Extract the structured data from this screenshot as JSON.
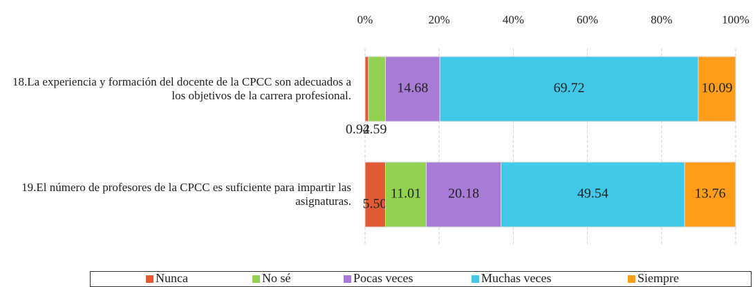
{
  "chart_data": {
    "type": "stacked_barh",
    "categories": [
      "18.La experiencia y formación del docente de la CPCC son adecuados a los objetivos de la carrera profesional.",
      "19.El número de profesores de la CPCC es suficiente para impartir las asignaturas."
    ],
    "series": [
      {
        "name": "Nunca",
        "color": "#e05a33",
        "values": [
          0.92,
          5.5
        ],
        "value_labels": [
          "0.92",
          "5.50"
        ]
      },
      {
        "name": "No sé",
        "color": "#92d050",
        "values": [
          4.59,
          11.01
        ],
        "value_labels": [
          "4.59",
          "11.01"
        ]
      },
      {
        "name": "Pocas veces",
        "color": "#a87bd6",
        "values": [
          14.68,
          20.18
        ],
        "value_labels": [
          "14.68",
          "20.18"
        ]
      },
      {
        "name": "Muchas veces",
        "color": "#41c8e8",
        "values": [
          69.72,
          49.54
        ],
        "value_labels": [
          "69.72",
          "49.54"
        ]
      },
      {
        "name": "Siempre",
        "color": "#ff9c1a",
        "values": [
          10.09,
          13.76
        ],
        "value_labels": [
          "10.09",
          "13.76"
        ]
      }
    ],
    "xlim": [
      0,
      100
    ],
    "xticks": [
      {
        "value": 0,
        "label": "0%"
      },
      {
        "value": 20,
        "label": "20%"
      },
      {
        "value": 40,
        "label": "40%"
      },
      {
        "value": 60,
        "label": "60%"
      },
      {
        "value": 80,
        "label": "80%"
      },
      {
        "value": 100,
        "label": "100%"
      }
    ],
    "grid": true,
    "legend": "bottom"
  }
}
